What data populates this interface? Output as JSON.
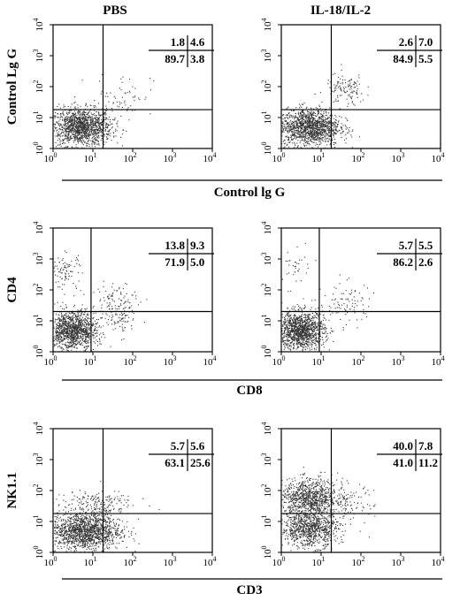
{
  "column_titles": [
    "PBS",
    "IL-18/IL-2"
  ],
  "chart_data": [
    {
      "type": "scatter",
      "title": "",
      "xlabel": "Control lg G",
      "ylabel": "Control Lg G",
      "xscale": "log",
      "yscale": "log",
      "xlim": [
        1,
        10000
      ],
      "ylim": [
        1,
        10000
      ],
      "xticks": [
        "10",
        "10",
        "10",
        "10",
        "10"
      ],
      "yticks": [
        "10",
        "10",
        "10",
        "10",
        "10"
      ],
      "tick_exponents": [
        "0",
        "1",
        "2",
        "3",
        "4"
      ],
      "panels": [
        {
          "column": "PBS",
          "gates": {
            "x": 18,
            "y": 18
          },
          "quadrants": {
            "upper_left": "1.8",
            "upper_right": "4.6",
            "lower_left": "89.7",
            "lower_right": "3.8"
          },
          "clusters": [
            {
              "cx": 5,
              "cy": 5,
              "sx": 0.38,
              "sy": 0.3,
              "n": 1400
            },
            {
              "cx": 60,
              "cy": 60,
              "sx": 0.35,
              "sy": 0.35,
              "n": 60
            }
          ]
        },
        {
          "column": "IL-18/IL-2",
          "gates": {
            "x": 18,
            "y": 18
          },
          "quadrants": {
            "upper_left": "2.6",
            "upper_right": "7.0",
            "lower_left": "84.9",
            "lower_right": "5.5"
          },
          "clusters": [
            {
              "cx": 5,
              "cy": 5,
              "sx": 0.38,
              "sy": 0.3,
              "n": 1400
            },
            {
              "cx": 40,
              "cy": 80,
              "sx": 0.25,
              "sy": 0.25,
              "n": 120
            }
          ]
        }
      ]
    },
    {
      "type": "scatter",
      "title": "",
      "xlabel": "CD8",
      "ylabel": "CD4",
      "xscale": "log",
      "yscale": "log",
      "xlim": [
        1,
        10000
      ],
      "ylim": [
        1,
        10000
      ],
      "xticks": [
        "10",
        "10",
        "10",
        "10",
        "10"
      ],
      "yticks": [
        "10",
        "10",
        "10",
        "10",
        "10"
      ],
      "tick_exponents": [
        "0",
        "1",
        "2",
        "3",
        "4"
      ],
      "panels": [
        {
          "column": "PBS",
          "gates": {
            "x": 9,
            "y": 20
          },
          "quadrants": {
            "upper_left": "13.8",
            "upper_right": "9.3",
            "lower_left": "71.9",
            "lower_right": "5.0"
          },
          "clusters": [
            {
              "cx": 3,
              "cy": 5,
              "sx": 0.3,
              "sy": 0.3,
              "n": 1200
            },
            {
              "cx": 2,
              "cy": 400,
              "sx": 0.2,
              "sy": 0.3,
              "n": 90
            },
            {
              "cx": 40,
              "cy": 40,
              "sx": 0.35,
              "sy": 0.35,
              "n": 120
            },
            {
              "cx": 50,
              "cy": 12,
              "sx": 0.15,
              "sy": 0.2,
              "n": 50
            }
          ]
        },
        {
          "column": "IL-18/IL-2",
          "gates": {
            "x": 9,
            "y": 20
          },
          "quadrants": {
            "upper_left": "5.7",
            "upper_right": "5.5",
            "lower_left": "86.2",
            "lower_right": "2.6"
          },
          "clusters": [
            {
              "cx": 3,
              "cy": 5,
              "sx": 0.3,
              "sy": 0.3,
              "n": 1300
            },
            {
              "cx": 2,
              "cy": 500,
              "sx": 0.2,
              "sy": 0.3,
              "n": 40
            },
            {
              "cx": 40,
              "cy": 40,
              "sx": 0.35,
              "sy": 0.35,
              "n": 90
            }
          ]
        }
      ]
    },
    {
      "type": "scatter",
      "title": "",
      "xlabel": "CD3",
      "ylabel": "NK1.1",
      "xscale": "log",
      "yscale": "log",
      "xlim": [
        1,
        10000
      ],
      "ylim": [
        1,
        10000
      ],
      "xticks": [
        "10",
        "10",
        "10",
        "10",
        "10"
      ],
      "yticks": [
        "10",
        "10",
        "10",
        "10",
        "10"
      ],
      "tick_exponents": [
        "0",
        "1",
        "2",
        "3",
        "4"
      ],
      "panels": [
        {
          "column": "PBS",
          "gates": {
            "x": 18,
            "y": 18
          },
          "quadrants": {
            "upper_left": "5.7",
            "upper_right": "5.6",
            "lower_left": "63.1",
            "lower_right": "25.6"
          },
          "clusters": [
            {
              "cx": 6,
              "cy": 5,
              "sx": 0.45,
              "sy": 0.3,
              "n": 1500
            },
            {
              "cx": 10,
              "cy": 40,
              "sx": 0.5,
              "sy": 0.2,
              "n": 180
            }
          ]
        },
        {
          "column": "IL-18/IL-2",
          "gates": {
            "x": 18,
            "y": 18
          },
          "quadrants": {
            "upper_left": "40.0",
            "upper_right": "7.8",
            "lower_left": "41.0",
            "lower_right": "11.2"
          },
          "clusters": [
            {
              "cx": 5,
              "cy": 60,
              "sx": 0.35,
              "sy": 0.3,
              "n": 900
            },
            {
              "cx": 5,
              "cy": 6,
              "sx": 0.35,
              "sy": 0.3,
              "n": 900
            },
            {
              "cx": 40,
              "cy": 40,
              "sx": 0.35,
              "sy": 0.35,
              "n": 120
            }
          ]
        }
      ]
    }
  ]
}
